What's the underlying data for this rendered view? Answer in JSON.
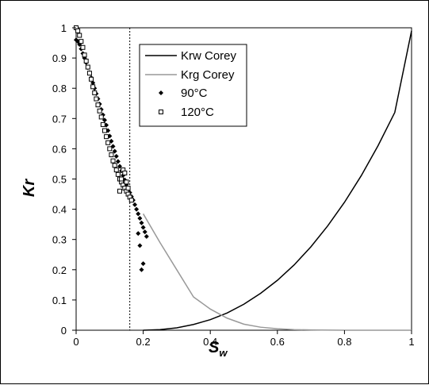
{
  "chart_data": {
    "type": "scatter",
    "xlabel": "S",
    "xlabel_sub": "w",
    "ylabel": "Kr",
    "xlim": [
      0,
      1
    ],
    "ylim": [
      0,
      1
    ],
    "x_ticks": [
      "0",
      "0.2",
      "0.4",
      "0.6",
      "0.8",
      "1"
    ],
    "y_ticks": [
      "0",
      "0.1",
      "0.2",
      "0.3",
      "0.4",
      "0.5",
      "0.6",
      "0.7",
      "0.8",
      "0.9",
      "1"
    ],
    "grid": false,
    "legend_position": "top-center",
    "vertical_reference_line_x": 0.16,
    "series": [
      {
        "name": "Krw Corey",
        "kind": "line",
        "color": "#000000",
        "x": [
          0.2,
          0.25,
          0.3,
          0.35,
          0.4,
          0.45,
          0.5,
          0.55,
          0.6,
          0.65,
          0.7,
          0.75,
          0.8,
          0.85,
          0.9,
          0.95,
          1.0
        ],
        "y": [
          0.0,
          0.002,
          0.008,
          0.019,
          0.035,
          0.057,
          0.086,
          0.122,
          0.165,
          0.216,
          0.276,
          0.345,
          0.423,
          0.511,
          0.61,
          0.72,
          0.99
        ]
      },
      {
        "name": "Krg Corey",
        "kind": "line",
        "color": "#999999",
        "x": [
          0.2,
          0.25,
          0.3,
          0.35,
          0.4,
          0.45,
          0.5,
          0.55,
          0.6,
          0.65,
          0.7,
          0.8,
          0.9,
          1.0
        ],
        "y": [
          0.385,
          0.29,
          0.2,
          0.11,
          0.07,
          0.04,
          0.02,
          0.01,
          0.005,
          0.002,
          0.001,
          0.0,
          0.0,
          0.0
        ]
      },
      {
        "name": "90°C",
        "kind": "points",
        "marker": "diamond",
        "color": "#000000",
        "x": [
          0.0,
          0.005,
          0.01,
          0.015,
          0.02,
          0.025,
          0.03,
          0.035,
          0.04,
          0.045,
          0.05,
          0.055,
          0.06,
          0.065,
          0.07,
          0.075,
          0.08,
          0.085,
          0.09,
          0.095,
          0.1,
          0.105,
          0.11,
          0.115,
          0.12,
          0.125,
          0.13,
          0.135,
          0.14,
          0.145,
          0.15,
          0.155,
          0.16,
          0.165,
          0.17,
          0.175,
          0.18,
          0.185,
          0.19,
          0.195,
          0.2,
          0.205,
          0.21,
          0.185,
          0.19,
          0.195,
          0.2
        ],
        "y": [
          0.96,
          0.955,
          0.945,
          0.93,
          0.915,
          0.9,
          0.885,
          0.868,
          0.852,
          0.835,
          0.818,
          0.8,
          0.782,
          0.765,
          0.748,
          0.73,
          0.712,
          0.695,
          0.678,
          0.66,
          0.642,
          0.625,
          0.608,
          0.592,
          0.575,
          0.558,
          0.542,
          0.527,
          0.512,
          0.497,
          0.482,
          0.468,
          0.455,
          0.442,
          0.43,
          0.415,
          0.4,
          0.385,
          0.37,
          0.355,
          0.34,
          0.325,
          0.31,
          0.32,
          0.28,
          0.2,
          0.22
        ]
      },
      {
        "name": "120°C",
        "kind": "points",
        "marker": "open-square",
        "color": "#000000",
        "x": [
          0.0,
          0.005,
          0.01,
          0.015,
          0.02,
          0.025,
          0.03,
          0.035,
          0.04,
          0.045,
          0.05,
          0.055,
          0.06,
          0.065,
          0.07,
          0.075,
          0.08,
          0.085,
          0.09,
          0.095,
          0.1,
          0.105,
          0.11,
          0.115,
          0.12,
          0.125,
          0.13,
          0.135,
          0.14,
          0.145,
          0.15,
          0.155,
          0.16,
          0.165,
          0.13,
          0.135,
          0.14,
          0.145,
          0.15,
          0.155
        ],
        "y": [
          1.0,
          0.99,
          0.975,
          0.955,
          0.935,
          0.91,
          0.89,
          0.87,
          0.85,
          0.83,
          0.805,
          0.785,
          0.765,
          0.745,
          0.725,
          0.705,
          0.68,
          0.66,
          0.64,
          0.62,
          0.6,
          0.58,
          0.56,
          0.545,
          0.53,
          0.515,
          0.5,
          0.49,
          0.48,
          0.47,
          0.46,
          0.45,
          0.44,
          0.43,
          0.46,
          0.5,
          0.53,
          0.52,
          0.49,
          0.47
        ]
      }
    ]
  }
}
